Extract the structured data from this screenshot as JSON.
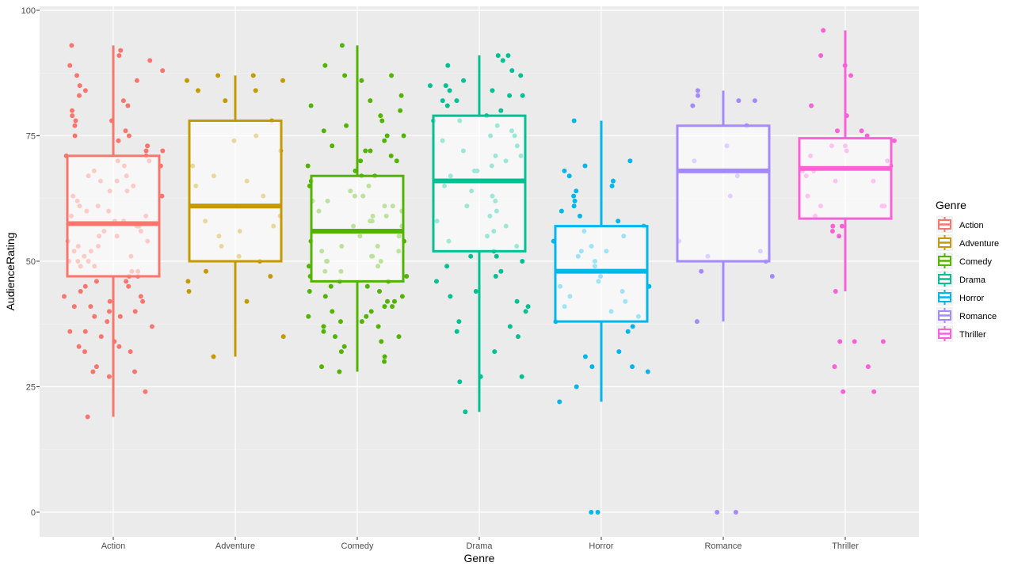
{
  "chart_data": {
    "type": "box",
    "xlabel": "Genre",
    "ylabel": "AudienceRating",
    "ylim": [
      -5,
      100
    ],
    "y_ticks": [
      0,
      25,
      50,
      75,
      100
    ],
    "grid": true,
    "legend": {
      "title": "Genre",
      "position": "right",
      "entries": [
        "Action",
        "Adventure",
        "Comedy",
        "Drama",
        "Horror",
        "Romance",
        "Thriller"
      ]
    },
    "categories": [
      "Action",
      "Adventure",
      "Comedy",
      "Drama",
      "Horror",
      "Romance",
      "Thriller"
    ],
    "series": [
      {
        "name": "Action",
        "color": "#F8766D",
        "box": {
          "min": 19,
          "q1": 47,
          "median": 57.5,
          "q3": 71,
          "max": 93
        },
        "points": [
          19,
          24,
          27,
          28,
          28,
          29,
          32,
          32,
          33,
          33,
          34,
          35,
          36,
          36,
          37,
          38,
          39,
          39,
          40,
          40,
          41,
          41,
          42,
          42,
          43,
          43,
          44,
          45,
          45,
          46,
          46,
          47,
          47,
          48,
          48,
          49,
          49,
          50,
          50,
          50,
          51,
          51,
          52,
          52,
          53,
          53,
          54,
          54,
          55,
          55,
          56,
          56,
          57,
          57,
          58,
          58,
          59,
          59,
          60,
          60,
          61,
          61,
          62,
          63,
          63,
          64,
          64,
          65,
          66,
          66,
          67,
          67,
          68,
          69,
          69,
          70,
          70,
          71,
          71,
          72,
          72,
          73,
          74,
          75,
          75,
          76,
          77,
          78,
          78,
          79,
          80,
          81,
          82,
          83,
          84,
          85,
          86,
          87,
          88,
          89,
          90,
          91,
          92,
          93
        ]
      },
      {
        "name": "Adventure",
        "color": "#C49A00",
        "box": {
          "min": 31,
          "q1": 50,
          "median": 61,
          "q3": 78,
          "max": 87
        },
        "points": [
          31,
          35,
          42,
          44,
          46,
          47,
          48,
          50,
          51,
          53,
          55,
          56,
          57,
          58,
          59,
          61,
          63,
          65,
          66,
          67,
          69,
          72,
          74,
          75,
          78,
          82,
          84,
          84,
          86,
          86,
          87,
          87
        ]
      },
      {
        "name": "Comedy",
        "color": "#53B400",
        "box": {
          "min": 28,
          "q1": 46,
          "median": 56,
          "q3": 67,
          "max": 93
        },
        "points": [
          28,
          29,
          30,
          31,
          32,
          33,
          34,
          35,
          35,
          36,
          37,
          37,
          38,
          38,
          39,
          39,
          40,
          40,
          41,
          41,
          42,
          42,
          43,
          43,
          44,
          44,
          45,
          45,
          46,
          46,
          47,
          47,
          48,
          48,
          49,
          49,
          50,
          50,
          50,
          51,
          51,
          52,
          52,
          53,
          53,
          54,
          54,
          55,
          55,
          56,
          56,
          57,
          57,
          58,
          58,
          59,
          59,
          60,
          60,
          61,
          61,
          62,
          62,
          63,
          63,
          64,
          64,
          65,
          65,
          66,
          67,
          67,
          68,
          69,
          70,
          70,
          71,
          72,
          72,
          73,
          74,
          75,
          75,
          76,
          77,
          78,
          79,
          80,
          81,
          82,
          83,
          86,
          87,
          87,
          89,
          93
        ]
      },
      {
        "name": "Drama",
        "color": "#00C094",
        "box": {
          "min": 20,
          "q1": 52,
          "median": 66,
          "q3": 79,
          "max": 91
        },
        "points": [
          20,
          26,
          27,
          27,
          32,
          35,
          36,
          37,
          38,
          40,
          41,
          42,
          43,
          44,
          46,
          47,
          48,
          49,
          50,
          51,
          51,
          52,
          53,
          54,
          55,
          56,
          57,
          58,
          59,
          60,
          61,
          62,
          63,
          64,
          65,
          66,
          66,
          67,
          68,
          68,
          69,
          70,
          71,
          71,
          72,
          73,
          74,
          75,
          75,
          76,
          77,
          78,
          78,
          79,
          80,
          81,
          82,
          82,
          83,
          83,
          84,
          84,
          85,
          85,
          86,
          87,
          88,
          89,
          90,
          91,
          91
        ]
      },
      {
        "name": "Horror",
        "color": "#00B6EB",
        "box": {
          "min": 22,
          "q1": 38,
          "median": 48,
          "q3": 57,
          "max": 78
        },
        "points": [
          0,
          0,
          22,
          25,
          28,
          29,
          29,
          31,
          32,
          36,
          37,
          38,
          39,
          40,
          41,
          42,
          43,
          44,
          45,
          45,
          46,
          47,
          48,
          49,
          50,
          51,
          52,
          52,
          53,
          54,
          55,
          56,
          57,
          58,
          59,
          60,
          61,
          62,
          63,
          64,
          65,
          66,
          67,
          68,
          69,
          70,
          78
        ]
      },
      {
        "name": "Romance",
        "color": "#A58AFF",
        "box": {
          "min": 38,
          "q1": 50,
          "median": 68,
          "q3": 77,
          "max": 84
        },
        "points": [
          0,
          0,
          38,
          47,
          48,
          50,
          51,
          52,
          54,
          63,
          67,
          70,
          73,
          77,
          81,
          82,
          82,
          83,
          84
        ]
      },
      {
        "name": "Thriller",
        "color": "#FB61D7",
        "box": {
          "min": 44,
          "q1": 58.5,
          "median": 68.5,
          "q3": 74.5,
          "max": 96
        },
        "points": [
          24,
          24,
          29,
          29,
          34,
          34,
          34,
          44,
          55,
          56,
          57,
          57,
          59,
          61,
          61,
          61,
          63,
          66,
          66,
          67,
          68,
          68,
          69,
          70,
          71,
          72,
          73,
          73,
          74,
          75,
          76,
          76,
          79,
          81,
          87,
          89,
          91,
          96
        ]
      }
    ]
  }
}
